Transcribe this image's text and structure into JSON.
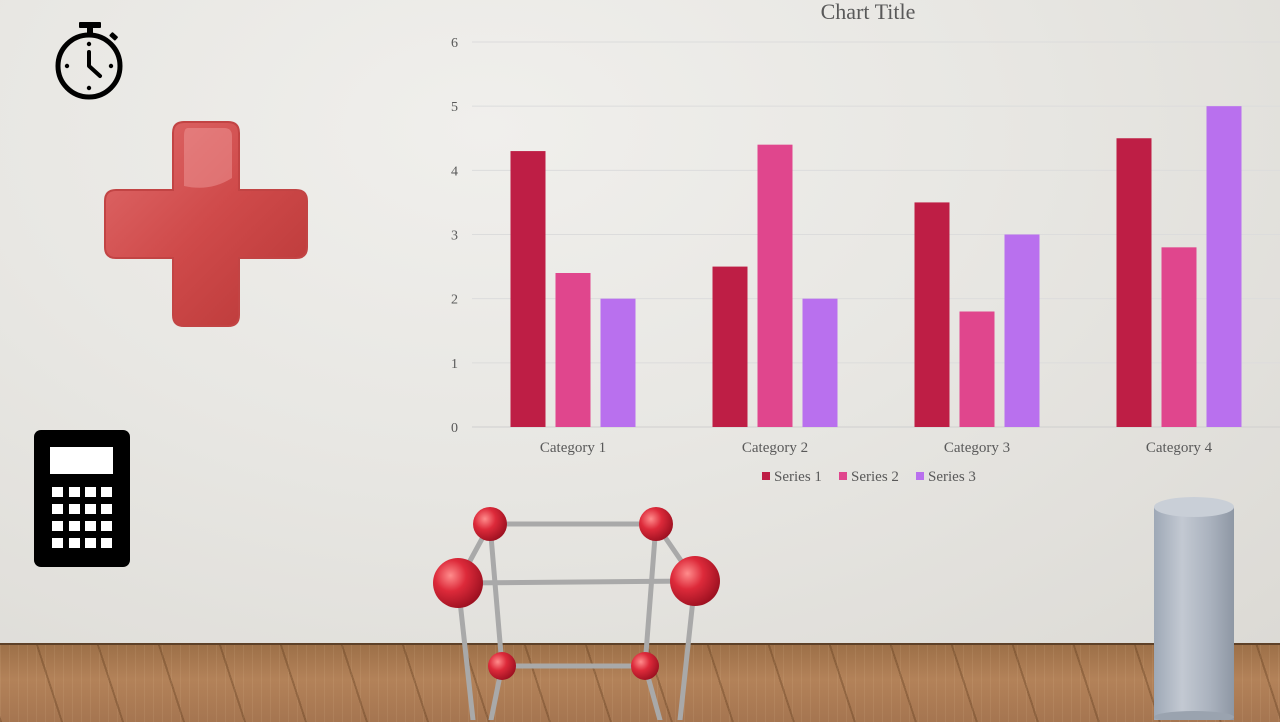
{
  "icons": {
    "stopwatch": "stopwatch-icon",
    "plus": "plus-icon",
    "calculator": "calculator-icon",
    "molecule": "molecule-model",
    "cylinder": "cylinder-shape"
  },
  "chart_data": {
    "type": "bar",
    "title": "Chart Title",
    "categories": [
      "Category 1",
      "Category 2",
      "Category 3",
      "Category 4"
    ],
    "series": [
      {
        "name": "Series 1",
        "values": [
          4.3,
          2.5,
          3.5,
          4.5
        ],
        "color": "#be1e45"
      },
      {
        "name": "Series 2",
        "values": [
          2.4,
          4.4,
          1.8,
          2.8
        ],
        "color": "#e0468d"
      },
      {
        "name": "Series 3",
        "values": [
          2.0,
          2.0,
          3.0,
          5.0
        ],
        "color": "#b970ee"
      }
    ],
    "ylim": [
      0,
      6
    ],
    "yticks": [
      "0",
      "1",
      "2",
      "3",
      "4",
      "5",
      "6"
    ],
    "grid": true,
    "legend": "bottom"
  }
}
